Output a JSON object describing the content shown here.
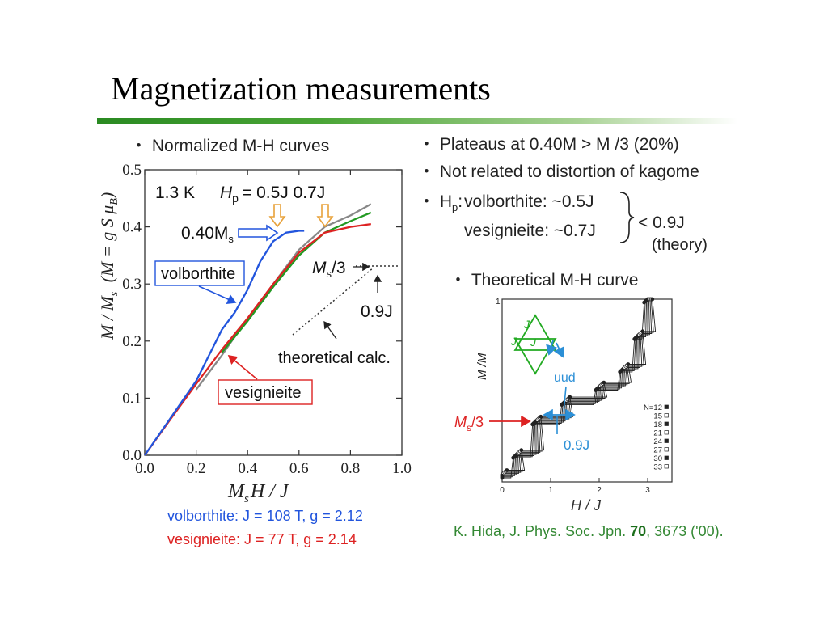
{
  "slide": {
    "title": "Magnetization measurements"
  },
  "left_panel": {
    "heading": "・ Normalized M-H curves",
    "temperature": "1.3 K",
    "hp_label": "H",
    "hp_sub": "p",
    "hp_eq": "= 0.5J  0.7J",
    "plateau_value": "0.40M",
    "plateau_sub": "s",
    "ms3_label": "M",
    "ms3_sub": "s",
    "ms3_tail": "/3",
    "h09_label": "0.9J",
    "volborthite_box": "volborthite",
    "vesignieite_box": "vesignieite",
    "theory_label": "theoretical calc.",
    "xlabel_m": "M",
    "xlabel_s": "s",
    "xlabel_rest": "H / J",
    "ylabel_main": "M / M",
    "ylabel_sub": "s",
    "ylabel_eq": "(M = g S μ",
    "ylabel_eq_sub_s": "s",
    "ylabel_eq_sub_b": "B",
    "ylabel_eq_close": ")",
    "xticks": [
      "0.0",
      "0.2",
      "0.4",
      "0.6",
      "0.8",
      "1.0"
    ],
    "yticks": [
      "0.0",
      "0.1",
      "0.2",
      "0.3",
      "0.4",
      "0.5"
    ],
    "params_volborthite": "volborthite: J = 108 T, g = 2.12",
    "params_vesignieite": "vesignieite: J = 77 T, g = 2.14"
  },
  "right_panel": {
    "bullets": [
      "・ Plateaus at 0.40M > M /3 (20%)",
      "・ Not related to distortion of kagome"
    ],
    "hp_bullet_prefix": "・ H",
    "hp_bullet_sub": "p",
    "hp_bullet_colon": ":",
    "hp_volborthite": "volborthite: ~0.5J",
    "hp_vesignieite": "vesignieite: ~0.7J",
    "hp_theory_value": "< 0.9J",
    "hp_theory_note": "(theory)",
    "theoretical_heading": "・ Theoretical M-H curve",
    "inset_ylabel": "M /M",
    "inset_xlabel": "H / J",
    "inset_xticks": [
      "0",
      "1",
      "2",
      "3"
    ],
    "inset_y1": "1",
    "uud_label": "uud",
    "ms3_inset": "M /3",
    "h09_inset": "0.9J",
    "kagome_J": "J",
    "legend": [
      "N=12",
      "15",
      "18",
      "21",
      "24",
      "27",
      "30",
      "33"
    ],
    "citation_prefix": "K. Hida, J. Phys. Soc. Jpn. ",
    "citation_volume": "70",
    "citation_suffix": ", 3673 ('00)."
  },
  "colors": {
    "volborthite": "#2255dd",
    "vesignieite": "#dd2222",
    "green_curve": "#229922",
    "gray_curve": "#888888",
    "arrow_orange": "#e8a23a",
    "inset_blue": "#2b8fd6",
    "kagome_green": "#22aa22",
    "citation_green": "#338833"
  },
  "chart_data": [
    {
      "type": "line",
      "title": "",
      "xlabel": "M_s H / J",
      "ylabel": "M / M_s (M_s = g S μ_B)",
      "xlim": [
        0.0,
        1.0
      ],
      "ylim": [
        0.0,
        0.5
      ],
      "series": [
        {
          "name": "volborthite",
          "x": [
            0.0,
            0.1,
            0.2,
            0.25,
            0.3,
            0.35,
            0.4,
            0.45,
            0.5,
            0.55,
            0.6,
            0.62
          ],
          "y": [
            0.0,
            0.065,
            0.13,
            0.175,
            0.22,
            0.25,
            0.29,
            0.34,
            0.375,
            0.39,
            0.393,
            0.393
          ]
        },
        {
          "name": "vesignieite",
          "x": [
            0.0,
            0.1,
            0.2,
            0.3,
            0.4,
            0.5,
            0.6,
            0.7,
            0.8,
            0.88
          ],
          "y": [
            0.0,
            0.063,
            0.125,
            0.185,
            0.24,
            0.3,
            0.355,
            0.39,
            0.4,
            0.405
          ]
        },
        {
          "name": "",
          "x": [
            0.3,
            0.4,
            0.5,
            0.6,
            0.7,
            0.8,
            0.88
          ],
          "y": [
            0.18,
            0.235,
            0.295,
            0.35,
            0.39,
            0.41,
            0.425
          ]
        },
        {
          "name": "",
          "x": [
            0.2,
            0.3,
            0.4,
            0.5,
            0.6,
            0.7,
            0.8,
            0.88
          ],
          "y": [
            0.115,
            0.175,
            0.24,
            0.3,
            0.36,
            0.4,
            0.42,
            0.44
          ]
        }
      ]
    },
    {
      "type": "line",
      "title": "",
      "xlabel": "H / J",
      "ylabel": "M_z / M_s",
      "xlim": [
        0,
        3.5
      ],
      "ylim": [
        0,
        1
      ],
      "series": [
        {
          "name": "N=12",
          "x": [
            0,
            0.3,
            0.3,
            0.7,
            0.7,
            1.3,
            1.3,
            2.0,
            2.0,
            2.5,
            2.5,
            2.8,
            2.8,
            3.0,
            3.0
          ],
          "y": [
            0.04,
            0.04,
            0.15,
            0.15,
            0.333,
            0.333,
            0.44,
            0.44,
            0.52,
            0.52,
            0.62,
            0.62,
            0.8,
            0.8,
            1.0
          ]
        }
      ]
    }
  ]
}
